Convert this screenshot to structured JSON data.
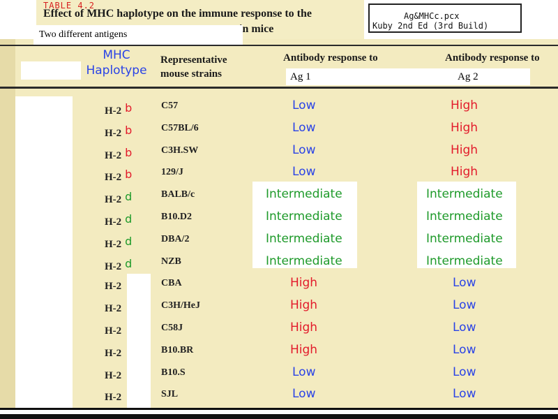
{
  "table_label": "TABLE 4.2",
  "title_line1": "Effect of MHC haplotype on the immune response to the",
  "title_line2": "in mice",
  "source": {
    "line1": "Ag&MHCc.pcx",
    "line2": "Kuby 2nd Ed (3rd Build)"
  },
  "subtitle": "Two different antigens",
  "headers": {
    "mhc_line1": "MHC",
    "mhc_line2": "Haplotype",
    "strains_line1": "Representative",
    "strains_line2": "mouse strains",
    "ab_response_1": "Antibody response to",
    "ab_response_2": "Antibody response to",
    "ag1": "Ag 1",
    "ag2": "Ag 2"
  },
  "colors": {
    "low": "#2a43e6",
    "high": "#e21b2b",
    "intermediate": "#1e9a2a",
    "allele_b": "#e21b2b",
    "allele_d": "#1e9a2a"
  },
  "rows": [
    {
      "haplotype": "H-2",
      "allele": "b",
      "strain": "C57",
      "ag1": "Low",
      "ag2": "High"
    },
    {
      "haplotype": "H-2",
      "allele": "b",
      "strain": "C57BL/6",
      "ag1": "Low",
      "ag2": "High"
    },
    {
      "haplotype": "H-2",
      "allele": "b",
      "strain": "C3H.SW",
      "ag1": "Low",
      "ag2": "High"
    },
    {
      "haplotype": "H-2",
      "allele": "b",
      "strain": "129/J",
      "ag1": "Low",
      "ag2": "High"
    },
    {
      "haplotype": "H-2",
      "allele": "d",
      "strain": "BALB/c",
      "ag1": "Intermediate",
      "ag2": "Intermediate"
    },
    {
      "haplotype": "H-2",
      "allele": "d",
      "strain": "B10.D2",
      "ag1": "Intermediate",
      "ag2": "Intermediate"
    },
    {
      "haplotype": "H-2",
      "allele": "d",
      "strain": "DBA/2",
      "ag1": "Intermediate",
      "ag2": "Intermediate"
    },
    {
      "haplotype": "H-2",
      "allele": "d",
      "strain": "NZB",
      "ag1": "Intermediate",
      "ag2": "Intermediate"
    },
    {
      "haplotype": "H-2",
      "allele": "",
      "strain": "CBA",
      "ag1": "High",
      "ag2": "Low"
    },
    {
      "haplotype": "H-2",
      "allele": "",
      "strain": "C3H/HeJ",
      "ag1": "High",
      "ag2": "Low"
    },
    {
      "haplotype": "H-2",
      "allele": "",
      "strain": "C58J",
      "ag1": "High",
      "ag2": "Low"
    },
    {
      "haplotype": "H-2",
      "allele": "",
      "strain": "B10.BR",
      "ag1": "High",
      "ag2": "Low"
    },
    {
      "haplotype": "H-2",
      "allele": "",
      "strain": "B10.S",
      "ag1": "Low",
      "ag2": "Low"
    },
    {
      "haplotype": "H-2",
      "allele": "",
      "strain": "SJL",
      "ag1": "Low",
      "ag2": "Low"
    }
  ]
}
